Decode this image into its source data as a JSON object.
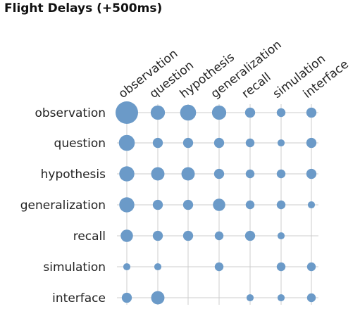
{
  "chart_data": {
    "type": "matrix-dot",
    "title": "Flight Delays (+500ms)",
    "rows": [
      "observation",
      "question",
      "hypothesis",
      "generalization",
      "recall",
      "simulation",
      "interface"
    ],
    "columns": [
      "observation",
      "question",
      "hypothesis",
      "generalization",
      "recall",
      "simulation",
      "interface"
    ],
    "values": [
      [
        10,
        4,
        5,
        4,
        2,
        1.5,
        2
      ],
      [
        5,
        2,
        2,
        2,
        1.5,
        1,
        2
      ],
      [
        4.5,
        3.5,
        3.5,
        2,
        1.5,
        1.5,
        2
      ],
      [
        4.5,
        2,
        2,
        3,
        1.5,
        1.5,
        1
      ],
      [
        3,
        2,
        2,
        1.5,
        2,
        1,
        0
      ],
      [
        1,
        1,
        0,
        1.5,
        0,
        1.5,
        1.5
      ],
      [
        2,
        3.5,
        0,
        0,
        1,
        1,
        1.5
      ]
    ],
    "color": "#6b9ac8",
    "grid": true
  }
}
